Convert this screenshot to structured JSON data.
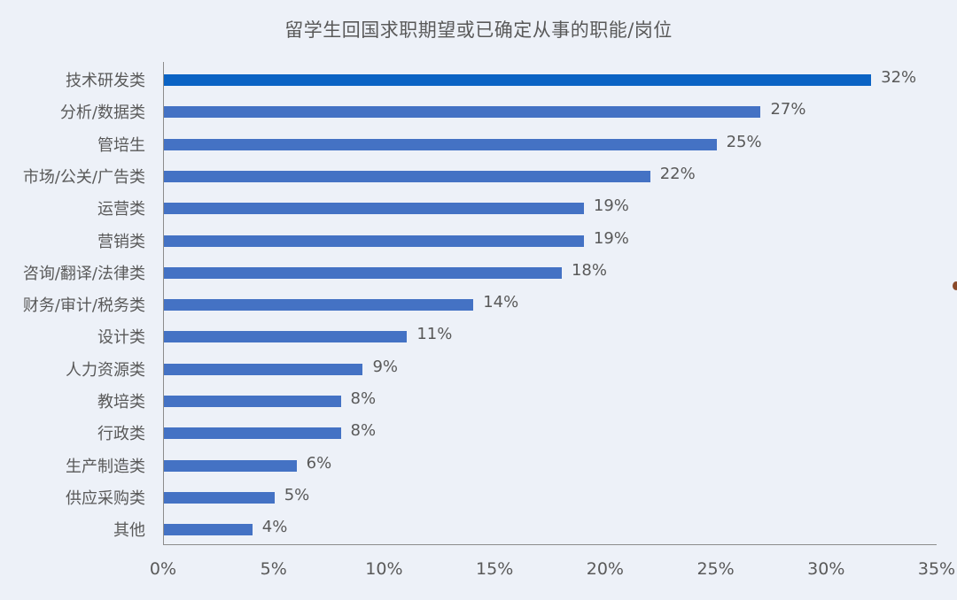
{
  "title": "留学生回国求职期望或已确定从事的职能/岗位",
  "chart_data": {
    "type": "bar",
    "orientation": "horizontal",
    "title": "留学生回国求职期望或已确定从事的职能/岗位",
    "xlabel": "",
    "ylabel": "",
    "xlim": [
      0,
      35
    ],
    "x_ticks": [
      "0%",
      "5%",
      "10%",
      "15%",
      "20%",
      "25%",
      "30%",
      "35%"
    ],
    "grid": false,
    "legend": null,
    "categories": [
      "技术研发类",
      "分析/数据类",
      "管培生",
      "市场/公关/广告类",
      "运营类",
      "营销类",
      "咨询/翻译/法律类",
      "财务/审计/税务类",
      "设计类",
      "人力资源类",
      "教培类",
      "行政类",
      "生产制造类",
      "供应采购类",
      "其他"
    ],
    "values": [
      32,
      27,
      25,
      22,
      19,
      19,
      18,
      14,
      11,
      9,
      8,
      8,
      6,
      5,
      4
    ],
    "labels": [
      "32%",
      "27%",
      "25%",
      "22%",
      "19%",
      "19%",
      "18%",
      "14%",
      "11%",
      "9%",
      "8%",
      "8%",
      "6%",
      "5%",
      "4%"
    ],
    "colors": {
      "highlight": "#0b63c4",
      "default": "#4472c4"
    }
  }
}
